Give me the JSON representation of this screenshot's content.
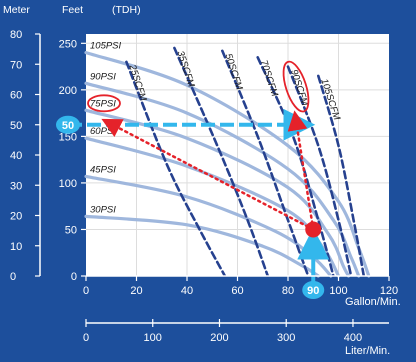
{
  "chart_data": {
    "type": "line",
    "header": {
      "meter_label": "Meter",
      "feet_label": "Feet",
      "tdh_label": "(TDH)"
    },
    "meter_axis": {
      "range": [
        0,
        80
      ],
      "ticks": [
        "80",
        "70",
        "60",
        "50",
        "40",
        "30",
        "20",
        "10",
        "0"
      ]
    },
    "feet_axis": {
      "range": [
        0,
        260
      ],
      "ticks": [
        "250",
        "200",
        "150",
        "100",
        "50",
        "0"
      ]
    },
    "gallon_axis": {
      "label": "Gallon/Min.",
      "range": [
        0,
        120
      ],
      "ticks": [
        "0",
        "20",
        "40",
        "60",
        "80",
        "100",
        "120"
      ]
    },
    "liter_axis": {
      "label": "Liter/Min.",
      "range": [
        0,
        454
      ],
      "ticks": [
        "0",
        "100",
        "200",
        "300",
        "400"
      ]
    },
    "pressure_curves": [
      {
        "name": "105PSI",
        "points": [
          [
            0,
            240
          ],
          [
            40,
            205
          ],
          [
            80,
            140
          ],
          [
            100,
            80
          ],
          [
            108,
            30
          ],
          [
            112,
            0
          ]
        ]
      },
      {
        "name": "90PSI",
        "points": [
          [
            0,
            207
          ],
          [
            40,
            175
          ],
          [
            80,
            115
          ],
          [
            98,
            60
          ],
          [
            105,
            20
          ],
          [
            108,
            0
          ]
        ]
      },
      {
        "name": "75PSI",
        "points": [
          [
            0,
            178
          ],
          [
            40,
            148
          ],
          [
            80,
            95
          ],
          [
            96,
            45
          ],
          [
            102,
            10
          ],
          [
            104,
            0
          ]
        ]
      },
      {
        "name": "60PSI",
        "points": [
          [
            0,
            148
          ],
          [
            40,
            118
          ],
          [
            80,
            70
          ],
          [
            94,
            30
          ],
          [
            100,
            0
          ]
        ]
      },
      {
        "name": "45PSI",
        "points": [
          [
            0,
            107
          ],
          [
            40,
            85
          ],
          [
            75,
            48
          ],
          [
            90,
            20
          ],
          [
            97,
            0
          ]
        ]
      },
      {
        "name": "30PSI",
        "points": [
          [
            0,
            64
          ],
          [
            40,
            55
          ],
          [
            70,
            32
          ],
          [
            85,
            12
          ],
          [
            92,
            0
          ]
        ]
      }
    ],
    "air_consumption_curves": [
      {
        "name": "25SCFM",
        "points": [
          [
            16,
            230
          ],
          [
            32,
            120
          ],
          [
            45,
            50
          ],
          [
            55,
            0
          ]
        ]
      },
      {
        "name": "35SCFM",
        "points": [
          [
            35,
            245
          ],
          [
            52,
            140
          ],
          [
            64,
            60
          ],
          [
            72,
            0
          ]
        ]
      },
      {
        "name": "50SCFM",
        "points": [
          [
            54,
            242
          ],
          [
            68,
            150
          ],
          [
            80,
            60
          ],
          [
            88,
            0
          ]
        ]
      },
      {
        "name": "70SCFM",
        "points": [
          [
            68,
            235
          ],
          [
            82,
            150
          ],
          [
            92,
            60
          ],
          [
            98,
            0
          ]
        ]
      },
      {
        "name": "90SCFM",
        "points": [
          [
            80,
            225
          ],
          [
            92,
            140
          ],
          [
            100,
            60
          ],
          [
            105,
            0
          ]
        ]
      },
      {
        "name": "105SCFM",
        "points": [
          [
            92,
            215
          ],
          [
            100,
            140
          ],
          [
            106,
            60
          ],
          [
            110,
            0
          ]
        ]
      }
    ],
    "example": {
      "flow_label": "90",
      "head_label": "50",
      "operating_point": [
        90,
        50
      ],
      "highlighted_pressure": "75PSI",
      "highlighted_air": "90SCFM"
    },
    "colors": {
      "background": "#1d4f9c",
      "plot_background": "#ffffff",
      "pressure_curve": "#9fb7dd",
      "air_curve": "#26418f",
      "marker": "#e5222a",
      "guide": "#33b7ec",
      "grid": "#dddddd"
    }
  }
}
